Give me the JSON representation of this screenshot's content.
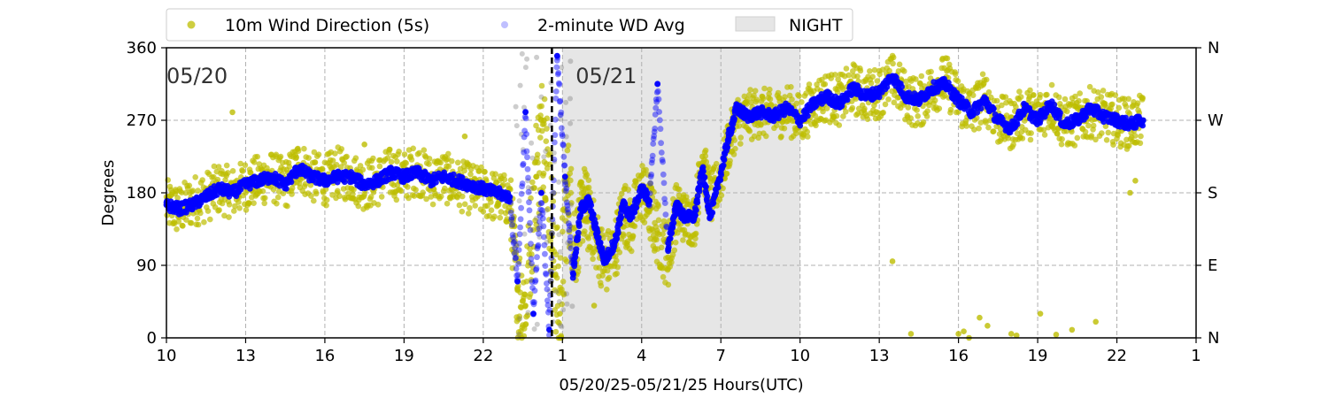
{
  "chart_data": {
    "type": "scatter",
    "xlabel": "05/20/25-05/21/25  Hours(UTC)",
    "ylabel": "Degrees",
    "xlim": [
      10,
      49
    ],
    "ylim": [
      0,
      360
    ],
    "x_ticks": [
      10,
      13,
      16,
      19,
      22,
      25,
      28,
      31,
      34,
      37,
      40,
      43,
      46,
      49
    ],
    "x_tick_labels": [
      "10",
      "13",
      "16",
      "19",
      "22",
      "1",
      "4",
      "7",
      "10",
      "13",
      "16",
      "19",
      "22",
      "1"
    ],
    "y_ticks": [
      0,
      90,
      180,
      270,
      360
    ],
    "y_tick_labels": [
      "0",
      "90",
      "180",
      "270",
      "360"
    ],
    "right_ticks": [
      0,
      90,
      180,
      270,
      360
    ],
    "right_tick_labels": [
      "N",
      "E",
      "S",
      "W",
      "N"
    ],
    "grid": true,
    "legend_position": "top",
    "annotations": [
      {
        "text": "05/20",
        "x": 10.0,
        "y": 325
      },
      {
        "text": "05/21",
        "x": 25.5,
        "y": 325
      }
    ],
    "midnight_line_x": 24.6,
    "night_span": {
      "name": "NIGHT",
      "x_start": 25.0,
      "x_end": 34.0,
      "color": "#e6e6e6"
    },
    "series": [
      {
        "name": "10m Wind Direction (5s)",
        "color": "#bdbd00",
        "style": "scatter",
        "x": [
          10.0,
          10.5,
          11.0,
          11.5,
          12.0,
          12.5,
          13.0,
          13.5,
          14.0,
          14.5,
          15.0,
          15.5,
          16.0,
          16.5,
          17.0,
          17.5,
          18.0,
          18.5,
          19.0,
          19.5,
          20.0,
          20.5,
          21.0,
          21.5,
          22.0,
          22.5,
          23.0,
          23.3,
          23.6,
          24.0,
          24.3,
          24.6,
          24.9,
          25.2,
          25.5,
          25.8,
          26.0,
          26.3,
          26.6,
          27.0,
          27.3,
          27.6,
          28.0,
          28.3,
          28.6,
          29.0,
          29.3,
          29.6,
          30.0,
          30.3,
          30.6,
          31.0,
          31.3,
          31.6,
          32.0,
          32.5,
          33.0,
          33.5,
          34.0,
          34.5,
          35.0,
          35.5,
          36.0,
          36.5,
          37.0,
          37.5,
          38.0,
          38.5,
          39.0,
          39.5,
          40.0,
          40.5,
          41.0,
          41.5,
          42.0,
          42.5,
          43.0,
          43.5,
          44.0,
          44.5,
          45.0,
          45.5,
          46.0,
          46.5,
          47.0
        ],
        "y": [
          165,
          158,
          170,
          175,
          185,
          180,
          190,
          195,
          200,
          190,
          215,
          200,
          195,
          205,
          200,
          190,
          195,
          205,
          200,
          210,
          195,
          200,
          190,
          185,
          180,
          175,
          170,
          60,
          40,
          200,
          270,
          130,
          30,
          190,
          110,
          170,
          150,
          120,
          90,
          110,
          160,
          140,
          185,
          160,
          130,
          100,
          160,
          150,
          145,
          225,
          170,
          200,
          240,
          270,
          275,
          280,
          275,
          285,
          270,
          290,
          300,
          295,
          310,
          300,
          305,
          320,
          300,
          290,
          310,
          320,
          295,
          280,
          300,
          270,
          265,
          280,
          275,
          290,
          265,
          270,
          280,
          275,
          270,
          265,
          270
        ],
        "spread": [
          40,
          40,
          40,
          40,
          40,
          40,
          40,
          40,
          40,
          40,
          40,
          40,
          40,
          40,
          40,
          40,
          40,
          40,
          40,
          40,
          40,
          40,
          40,
          40,
          40,
          40,
          60,
          80,
          80,
          100,
          100,
          100,
          100,
          80,
          60,
          60,
          50,
          50,
          50,
          50,
          50,
          50,
          50,
          50,
          50,
          50,
          40,
          40,
          40,
          40,
          40,
          40,
          40,
          40,
          40,
          40,
          40,
          40,
          40,
          40,
          40,
          40,
          40,
          40,
          40,
          40,
          40,
          40,
          40,
          40,
          40,
          40,
          40,
          40,
          40,
          40,
          40,
          40,
          40,
          40,
          40,
          40,
          40,
          40,
          40
        ],
        "outliers_x": [
          12.5,
          17.5,
          21.3,
          26.2,
          38.2,
          40.2,
          40.8,
          41.1,
          42.0,
          42.2,
          43.1,
          43.7,
          44.3,
          45.2,
          46.5,
          46.7,
          40.0,
          40.4,
          37.5
        ],
        "outliers_y": [
          280,
          240,
          250,
          40,
          5,
          8,
          25,
          15,
          5,
          3,
          30,
          4,
          10,
          20,
          180,
          195,
          5,
          0,
          95
        ]
      },
      {
        "name": "2-minute WD Avg",
        "color": "#0000ff",
        "style": "line-scatter",
        "x": [
          10.0,
          10.5,
          11.0,
          11.5,
          12.0,
          12.5,
          13.0,
          13.5,
          14.0,
          14.5,
          15.0,
          15.5,
          16.0,
          16.5,
          17.0,
          17.5,
          18.0,
          18.5,
          19.0,
          19.5,
          20.0,
          20.5,
          21.0,
          21.5,
          22.0,
          22.5,
          23.0,
          23.3,
          23.6,
          23.9,
          24.2,
          24.5,
          24.8,
          25.1,
          25.4,
          25.7,
          26.0,
          26.3,
          26.6,
          27.0,
          27.3,
          27.6,
          28.0,
          28.3,
          28.6,
          29.0,
          29.3,
          29.6,
          30.0,
          30.3,
          30.6,
          31.0,
          31.3,
          31.6,
          32.0,
          32.5,
          33.0,
          33.5,
          34.0,
          34.5,
          35.0,
          35.5,
          36.0,
          36.5,
          37.0,
          37.5,
          38.0,
          38.5,
          39.0,
          39.5,
          40.0,
          40.5,
          41.0,
          41.5,
          42.0,
          42.5,
          43.0,
          43.5,
          44.0,
          44.5,
          45.0,
          45.5,
          46.0,
          46.5,
          47.0
        ],
        "y": [
          165,
          160,
          165,
          175,
          185,
          180,
          190,
          195,
          200,
          190,
          210,
          200,
          195,
          200,
          200,
          190,
          195,
          205,
          200,
          205,
          195,
          200,
          195,
          190,
          185,
          180,
          175,
          70,
          280,
          30,
          180,
          10,
          350,
          200,
          80,
          160,
          170,
          130,
          95,
          120,
          165,
          150,
          185,
          170,
          315,
          110,
          165,
          150,
          150,
          210,
          150,
          205,
          250,
          285,
          275,
          280,
          275,
          285,
          270,
          290,
          300,
          290,
          310,
          300,
          305,
          325,
          300,
          295,
          310,
          315,
          295,
          280,
          295,
          270,
          260,
          285,
          270,
          290,
          265,
          270,
          285,
          275,
          270,
          265,
          270
        ]
      }
    ]
  }
}
